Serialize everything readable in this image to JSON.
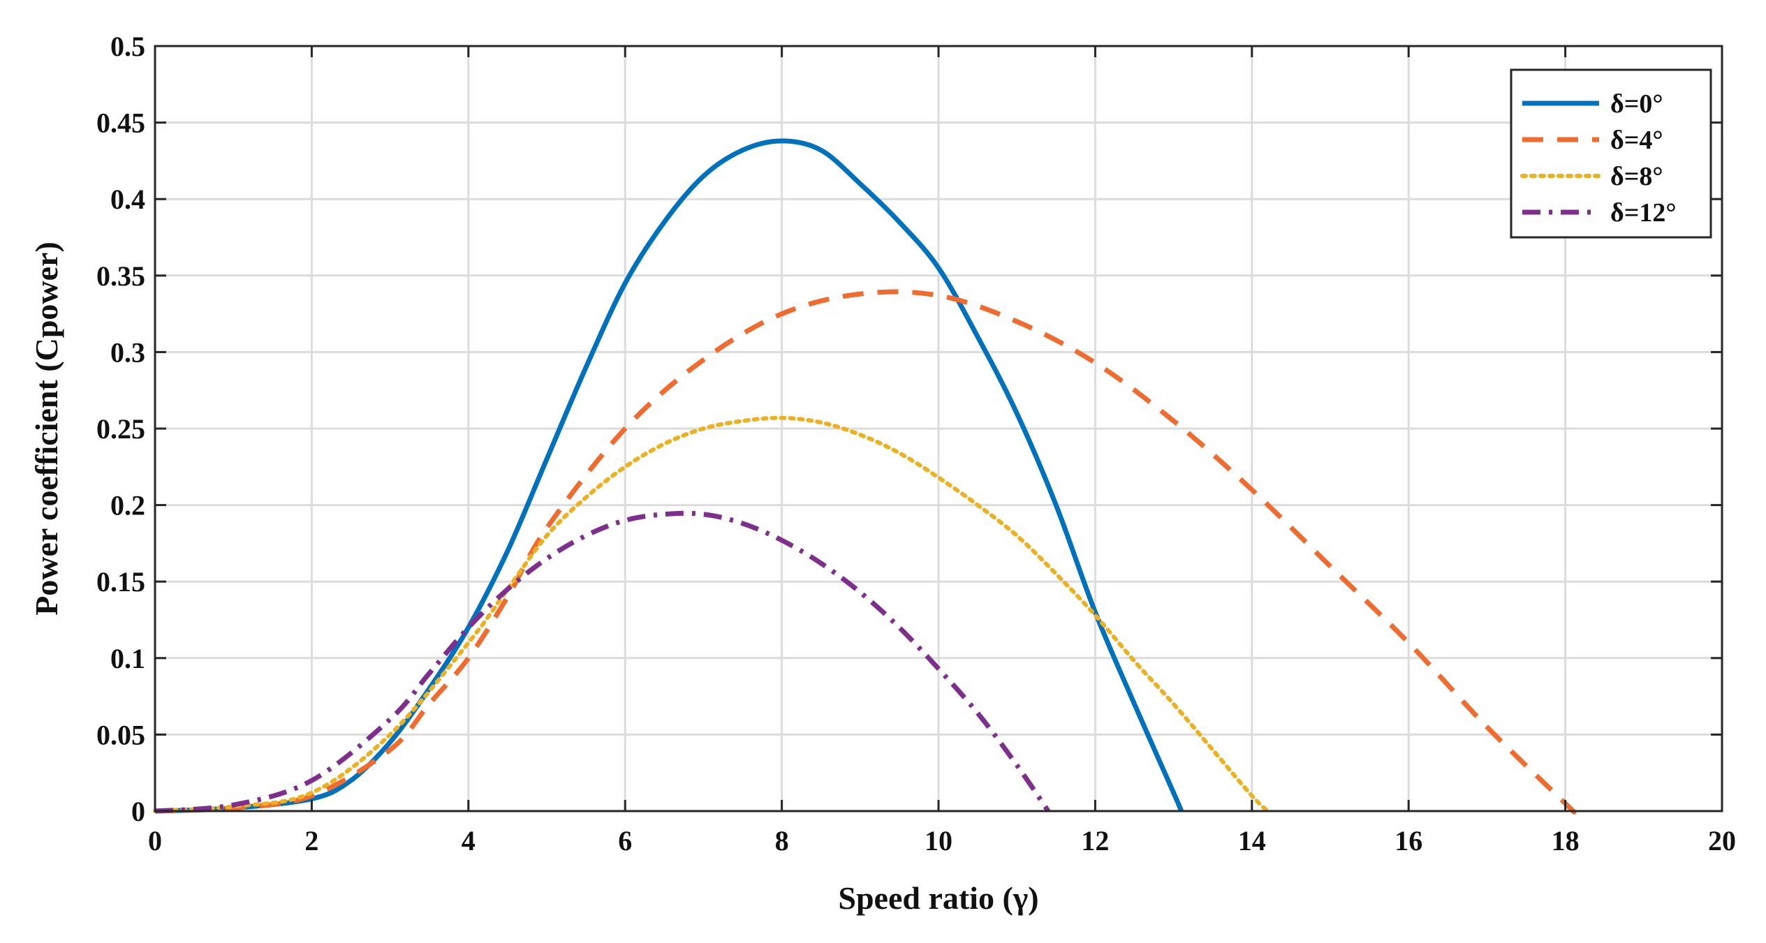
{
  "chart_data": {
    "type": "line",
    "title": "",
    "xlabel": "Speed ratio (γ)",
    "ylabel": "Power coefficient  (Cpower)",
    "xlim": [
      0,
      20
    ],
    "ylim": [
      0,
      0.5
    ],
    "xticks": [
      "0",
      "2",
      "4",
      "6",
      "8",
      "10",
      "12",
      "14",
      "16",
      "18",
      "20"
    ],
    "yticks": [
      "0",
      "0.05",
      "0.1",
      "0.15",
      "0.2",
      "0.25",
      "0.3",
      "0.35",
      "0.4",
      "0.45",
      "0.5"
    ],
    "grid": true,
    "legend_position": "top-right",
    "series": [
      {
        "name": "δ=0°",
        "color": "#0072BD",
        "style": "solid",
        "x": [
          0,
          1,
          2,
          2.5,
          3,
          3.5,
          4,
          4.5,
          5,
          5.5,
          6,
          6.5,
          7,
          7.5,
          8,
          8.5,
          9,
          9.5,
          10,
          10.5,
          11,
          11.5,
          12,
          12.5,
          13,
          13.1
        ],
        "y": [
          0,
          0.002,
          0.008,
          0.02,
          0.045,
          0.08,
          0.12,
          0.17,
          0.23,
          0.29,
          0.345,
          0.385,
          0.415,
          0.432,
          0.438,
          0.432,
          0.41,
          0.385,
          0.355,
          0.31,
          0.26,
          0.2,
          0.13,
          0.07,
          0.012,
          0
        ]
      },
      {
        "name": "δ=4°",
        "color": "#F26B2E",
        "style": "dashed",
        "x": [
          0,
          1,
          2,
          3,
          3.5,
          4,
          4.5,
          5,
          6,
          7,
          8,
          9,
          10,
          11,
          12,
          13,
          14,
          15,
          16,
          17,
          18,
          18.1
        ],
        "y": [
          0,
          0.002,
          0.01,
          0.04,
          0.07,
          0.1,
          0.14,
          0.185,
          0.25,
          0.295,
          0.325,
          0.338,
          0.337,
          0.32,
          0.293,
          0.255,
          0.21,
          0.16,
          0.11,
          0.055,
          0.005,
          0
        ]
      },
      {
        "name": "δ=8°",
        "color": "#EDB120",
        "style": "dotted",
        "x": [
          0,
          1,
          2,
          3,
          4,
          4.5,
          5,
          5.5,
          6,
          6.5,
          7,
          7.5,
          8,
          8.5,
          9,
          9.5,
          10,
          10.5,
          11,
          11.5,
          12,
          12.5,
          13,
          13.5,
          14,
          14.2
        ],
        "y": [
          0,
          0.003,
          0.012,
          0.05,
          0.11,
          0.145,
          0.18,
          0.205,
          0.225,
          0.24,
          0.25,
          0.255,
          0.257,
          0.254,
          0.246,
          0.234,
          0.218,
          0.2,
          0.18,
          0.155,
          0.128,
          0.098,
          0.07,
          0.04,
          0.01,
          0
        ]
      },
      {
        "name": "δ=12°",
        "color": "#7E2F8E",
        "style": "dashdot",
        "x": [
          0,
          1,
          2,
          3,
          3.5,
          4,
          4.5,
          5,
          5.5,
          6,
          6.5,
          7,
          7.5,
          8,
          8.5,
          9,
          9.5,
          10,
          10.5,
          11,
          11.4
        ],
        "y": [
          0,
          0.004,
          0.02,
          0.06,
          0.09,
          0.12,
          0.145,
          0.165,
          0.18,
          0.19,
          0.194,
          0.194,
          0.188,
          0.177,
          0.162,
          0.143,
          0.12,
          0.093,
          0.064,
          0.03,
          0
        ]
      }
    ]
  }
}
